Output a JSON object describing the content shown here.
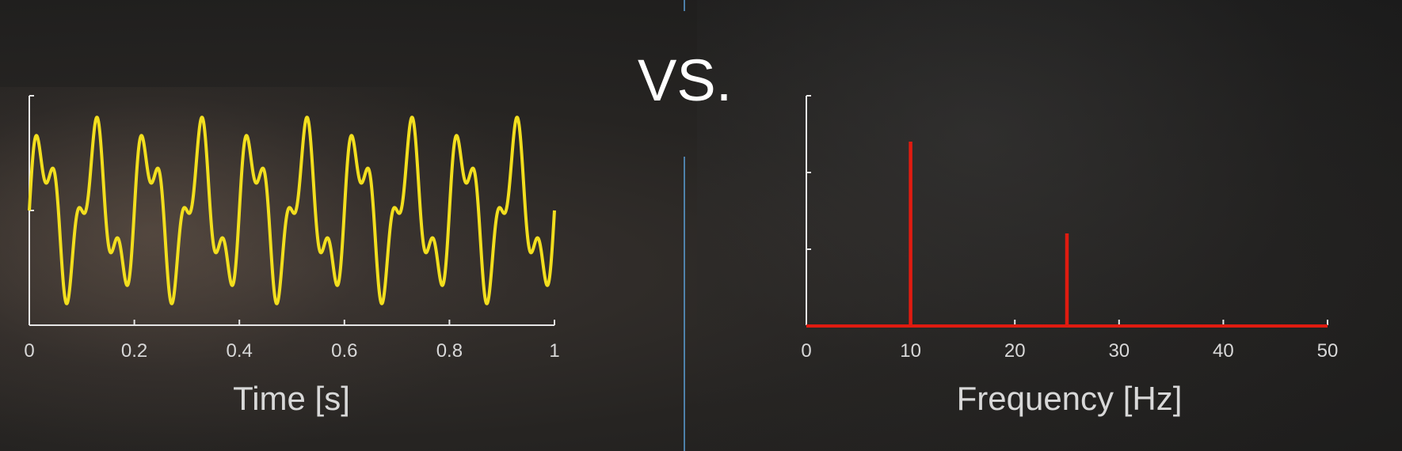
{
  "separator_text": "VS.",
  "colors": {
    "signal": "#f2de1e",
    "spectrum": "#e01b10",
    "axis": "#e6e6e6",
    "divider": "#5b9fd6"
  },
  "chart_data": [
    {
      "type": "line",
      "xlabel": "Time [s]",
      "xlim": [
        0,
        1
      ],
      "x_ticks": [
        "0",
        "0.2",
        "0.4",
        "0.6",
        "0.8",
        "1"
      ],
      "y_ticks_labeled": false,
      "ylim": [
        -1.8,
        1.8
      ],
      "series": [
        {
          "function": "sin(2*pi*10*t) + 0.5*sin(2*pi*25*t)",
          "components_hz": [
            10,
            25
          ],
          "amplitudes": [
            1,
            0.5
          ],
          "t_range": [
            0,
            1
          ]
        }
      ]
    },
    {
      "type": "bar",
      "xlabel": "Frequency [Hz]",
      "xlim": [
        0,
        50
      ],
      "x_ticks": [
        "0",
        "10",
        "20",
        "30",
        "40",
        "50"
      ],
      "y_ticks_labeled": false,
      "ylim": [
        0,
        1.25
      ],
      "x": [
        10,
        25
      ],
      "values": [
        1.0,
        0.5
      ]
    }
  ]
}
